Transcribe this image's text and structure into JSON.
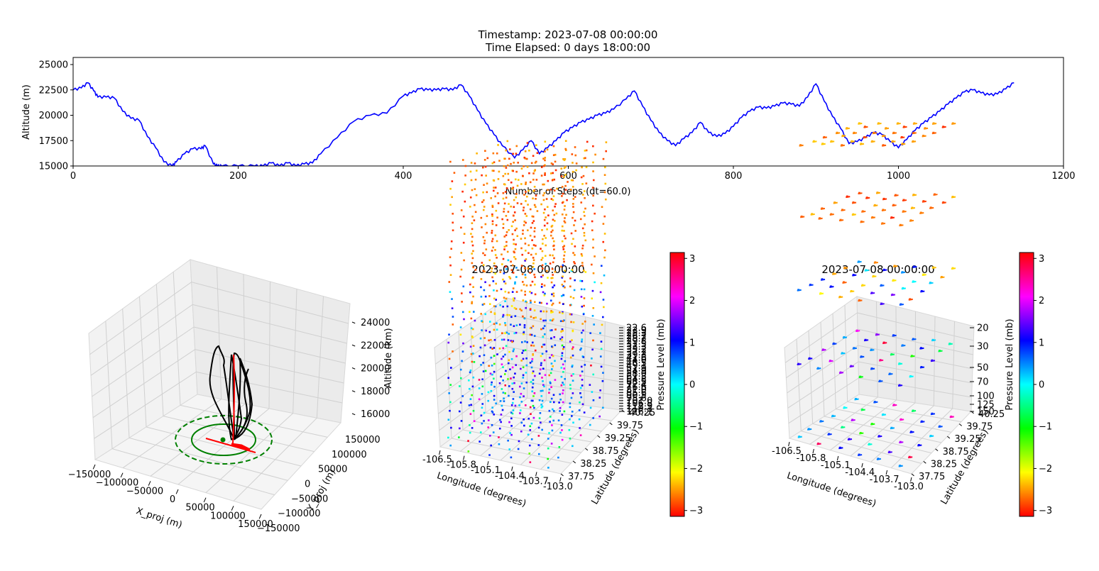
{
  "figure": {
    "title_line1": "Timestamp: 2023-07-08 00:00:00",
    "title_line2": "Time Elapsed: 0 days 18:00:00"
  },
  "chart_data": [
    {
      "type": "line",
      "id": "altitude-timeseries",
      "xlabel": "Number of Steps (dt=60.0)",
      "ylabel": "Altitude (m)",
      "xlim": [
        0,
        1200
      ],
      "ylim": [
        15000,
        25700
      ],
      "xticks": [
        "0",
        "200",
        "400",
        "600",
        "800",
        "1000",
        "1200"
      ],
      "yticks": [
        "15000",
        "17500",
        "20000",
        "22500",
        "25000"
      ],
      "line_color": "#0000ff",
      "series": [
        {
          "x": [
            0,
            10,
            18,
            25,
            30,
            40,
            50,
            60,
            70,
            80,
            90,
            100,
            110,
            120,
            125,
            135,
            145,
            155,
            160,
            170,
            175,
            180,
            200,
            220,
            230,
            240,
            250,
            260,
            270,
            280,
            290,
            300,
            320,
            340,
            360,
            380,
            400,
            410,
            420,
            430,
            440,
            450,
            460,
            470,
            480,
            490,
            500,
            510,
            520,
            535,
            545,
            555,
            565,
            575,
            585,
            595,
            605,
            615,
            625,
            635,
            645,
            655,
            670,
            680,
            690,
            700,
            710,
            720,
            730,
            740,
            750,
            760,
            770,
            780,
            790,
            800,
            810,
            820,
            830,
            840,
            850,
            860,
            870,
            880,
            890,
            900,
            910,
            920,
            930,
            940,
            950,
            960,
            970,
            980,
            990,
            1000,
            1010,
            1020,
            1030,
            1040,
            1050,
            1060,
            1070,
            1080,
            1090,
            1100,
            1110,
            1120,
            1130,
            1140
          ],
          "y": [
            22500,
            22700,
            23200,
            22400,
            21800,
            21800,
            21700,
            20400,
            19700,
            19500,
            17900,
            16800,
            15400,
            15000,
            15400,
            16200,
            16700,
            16700,
            17000,
            15200,
            15000,
            15000,
            15000,
            15000,
            15000,
            15300,
            15000,
            15300,
            15000,
            15200,
            15300,
            16200,
            17800,
            19400,
            20000,
            20200,
            21900,
            22200,
            22600,
            22500,
            22500,
            22600,
            22500,
            23000,
            21900,
            20500,
            19200,
            18100,
            17000,
            15800,
            16600,
            17500,
            16200,
            16800,
            17500,
            18300,
            18800,
            19300,
            19600,
            20000,
            20200,
            20600,
            21600,
            22400,
            20900,
            19500,
            18300,
            17500,
            17000,
            17700,
            18300,
            19300,
            18300,
            17900,
            18200,
            18900,
            19800,
            20400,
            20800,
            20700,
            20900,
            21200,
            21100,
            20900,
            21800,
            23100,
            21400,
            19900,
            18700,
            17200,
            17400,
            17800,
            18300,
            18100,
            17400,
            16800,
            17600,
            18500,
            19200,
            19800,
            20400,
            21100,
            21700,
            22300,
            22500,
            22200,
            22000,
            22100,
            22600,
            23200
          ]
        }
      ]
    },
    {
      "type": "scatter",
      "id": "trajectory-3d",
      "xlabel": "X_proj (m)",
      "ylabel": "Y_proj (m)",
      "zlabel": "Altitude (km)",
      "xticks": [
        "−150000",
        "−100000",
        "−50000",
        "0",
        "50000",
        "100000",
        "150000"
      ],
      "yticks": [
        "−150000",
        "−100000",
        "−50000",
        "0",
        "50000",
        "100000",
        "150000"
      ],
      "zticks": [
        "16000",
        "18000",
        "20000",
        "22000",
        "24000"
      ],
      "series": [
        {
          "name": "",
          "color": "#000000"
        },
        {
          "name": "",
          "color": "#ff0000"
        },
        {
          "name": "",
          "color": "#008000"
        }
      ]
    },
    {
      "type": "scatter",
      "id": "wind-field-1",
      "title": "2023-07-08 00:00:00",
      "xlabel": "Longitude (degrees)",
      "ylabel": "Latitude (degrees)",
      "zlabel": "Pressure Level (mb)",
      "xticks": [
        "-106.5",
        "-105.8",
        "-105.1",
        "-104.4",
        "-103.7",
        "-103.0"
      ],
      "yticks": [
        "37.75",
        "38.25",
        "38.75",
        "39.25",
        "39.75",
        "40.25"
      ],
      "zticks": [
        "22.6",
        "23.9",
        "25.3",
        "26.7",
        "28.2",
        "29.8",
        "31.5",
        "33.3",
        "35.2",
        "37.2",
        "39.3",
        "41.6",
        "44.0",
        "46.5",
        "49.1",
        "51.9",
        "54.9",
        "58.0",
        "61.3",
        "64.8",
        "68.5",
        "72.4",
        "76.6",
        "81.0",
        "85.6",
        "90.5",
        "95.6",
        "101.0",
        "106.8",
        "112.9",
        "119.3",
        "126.1"
      ],
      "colorbar": {
        "label": "Pressure Level (mb)",
        "ticks": [
          "3",
          "2",
          "1",
          "0",
          "−1",
          "−2",
          "−3"
        ],
        "range": [
          -3.14,
          3.14
        ],
        "colormap": "hsv"
      }
    },
    {
      "type": "scatter",
      "id": "wind-field-2",
      "title": "2023-07-08 00:00:00",
      "xlabel": "Longitude (degrees)",
      "ylabel": "Latitude (degrees)",
      "zlabel": "Pressure Level (mb)",
      "xticks": [
        "-106.5",
        "-105.8",
        "-105.1",
        "-104.4",
        "-103.7",
        "-103.0"
      ],
      "yticks": [
        "37.75",
        "38.25",
        "38.75",
        "39.25",
        "39.75",
        "40.25"
      ],
      "zticks": [
        "20",
        "30",
        "50",
        "70",
        "100",
        "125",
        "150"
      ],
      "colorbar": {
        "label": "Pressure Level (mb)",
        "ticks": [
          "3",
          "2",
          "1",
          "0",
          "−1",
          "−2",
          "−3"
        ],
        "range": [
          -3.14,
          3.14
        ],
        "colormap": "hsv"
      }
    }
  ]
}
